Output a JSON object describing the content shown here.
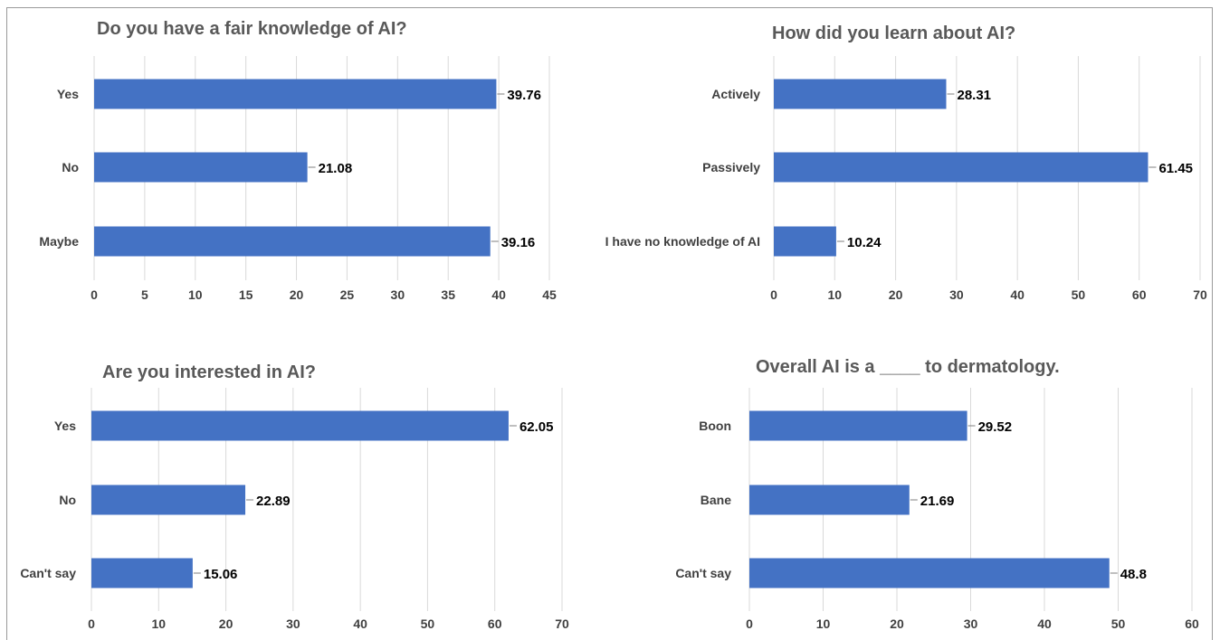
{
  "chart_data": [
    {
      "type": "bar",
      "orientation": "horizontal",
      "title": "Do you have a fair knowledge of AI?",
      "categories": [
        "Yes",
        "No",
        "Maybe"
      ],
      "values": [
        39.76,
        21.08,
        39.16
      ],
      "value_labels": [
        "39.76",
        "21.08",
        "39.16"
      ],
      "xlim": [
        0,
        45
      ],
      "ticks": [
        0,
        5,
        10,
        15,
        20,
        25,
        30,
        35,
        40,
        45
      ],
      "grid": true,
      "color": "#4472c4"
    },
    {
      "type": "bar",
      "orientation": "horizontal",
      "title": "How did you learn about AI?",
      "categories": [
        "Actively",
        "Passively",
        "I have no knowledge of AI"
      ],
      "values": [
        28.31,
        61.45,
        10.24
      ],
      "value_labels": [
        "28.31",
        "61.45",
        "10.24"
      ],
      "xlim": [
        0,
        70
      ],
      "ticks": [
        0,
        10,
        20,
        30,
        40,
        50,
        60,
        70
      ],
      "grid": true,
      "color": "#4472c4"
    },
    {
      "type": "bar",
      "orientation": "horizontal",
      "title": "Are you interested in AI?",
      "categories": [
        "Yes",
        "No",
        "Can't say"
      ],
      "values": [
        62.05,
        22.89,
        15.06
      ],
      "value_labels": [
        "62.05",
        "22.89",
        "15.06"
      ],
      "xlim": [
        0,
        70
      ],
      "ticks": [
        0,
        10,
        20,
        30,
        40,
        50,
        60,
        70
      ],
      "grid": true,
      "color": "#4472c4"
    },
    {
      "type": "bar",
      "orientation": "horizontal",
      "title": "Overall AI is a ____ to dermatology.",
      "categories": [
        "Boon",
        "Bane",
        "Can't say"
      ],
      "values": [
        29.52,
        21.69,
        48.8
      ],
      "value_labels": [
        "29.52",
        "21.69",
        "48.8"
      ],
      "xlim": [
        0,
        60
      ],
      "ticks": [
        0,
        10,
        20,
        30,
        40,
        50,
        60
      ],
      "grid": true,
      "color": "#4472c4"
    }
  ]
}
